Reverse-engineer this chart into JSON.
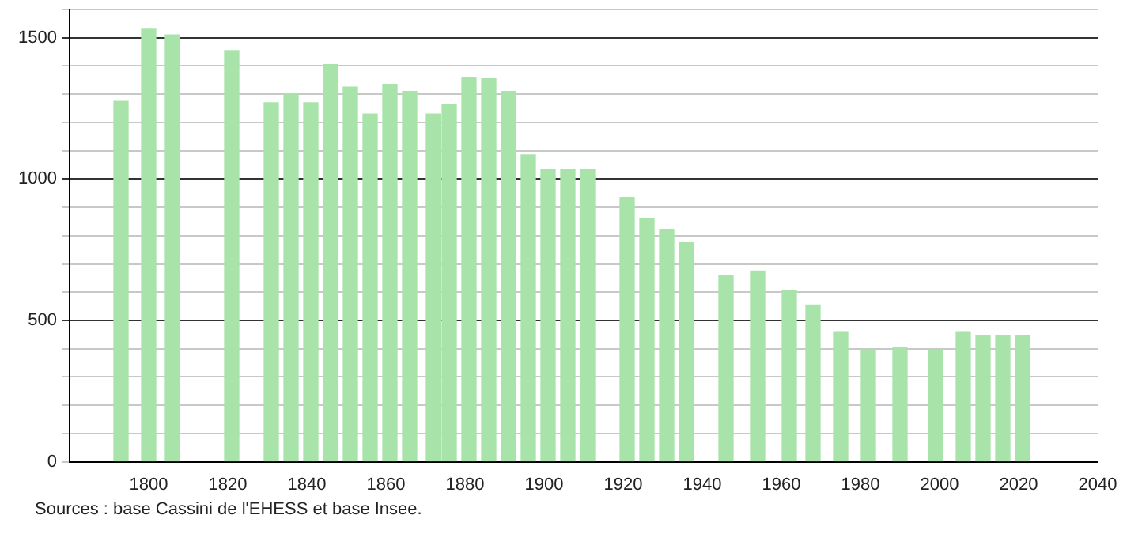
{
  "chart_data": {
    "type": "bar",
    "color": "#a8e4aa",
    "x": [
      1793,
      1800,
      1806,
      1821,
      1831,
      1836,
      1841,
      1846,
      1851,
      1856,
      1861,
      1866,
      1872,
      1876,
      1881,
      1886,
      1891,
      1896,
      1901,
      1906,
      1911,
      1921,
      1926,
      1931,
      1936,
      1946,
      1954,
      1962,
      1968,
      1975,
      1982,
      1990,
      1999,
      2006,
      2011,
      2016,
      2021
    ],
    "values": [
      1275,
      1530,
      1510,
      1455,
      1270,
      1300,
      1270,
      1405,
      1325,
      1230,
      1335,
      1310,
      1230,
      1265,
      1360,
      1355,
      1310,
      1085,
      1035,
      1035,
      1035,
      935,
      860,
      820,
      775,
      660,
      675,
      605,
      555,
      460,
      395,
      405,
      395,
      460,
      445,
      445,
      445
    ],
    "xlim": [
      1780,
      2040
    ],
    "xticks": [
      1800,
      1820,
      1840,
      1860,
      1880,
      1900,
      1920,
      1940,
      1960,
      1980,
      2000,
      2020,
      2040
    ],
    "ylim": [
      0,
      1600
    ],
    "yticks": [
      0,
      {
        "value": 100,
        "label": null
      },
      {
        "value": 200,
        "label": null
      },
      {
        "value": 300,
        "label": null
      },
      {
        "value": 400,
        "label": null
      },
      500,
      {
        "value": 600,
        "label": null
      },
      {
        "value": 700,
        "label": null
      },
      {
        "value": 800,
        "label": null
      },
      {
        "value": 900,
        "label": null
      },
      1000,
      {
        "value": 1100,
        "label": null
      },
      {
        "value": 1200,
        "label": null
      },
      {
        "value": 1300,
        "label": null
      },
      {
        "value": 1400,
        "label": null
      },
      1500,
      {
        "value": 1600,
        "label": null
      }
    ],
    "grid": "y",
    "legend": false,
    "annotations": [
      "Sources : base Cassini de l'EHESS et base Insee."
    ]
  }
}
